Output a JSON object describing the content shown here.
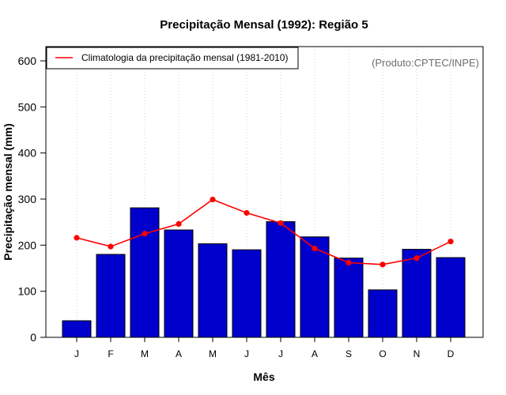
{
  "chart_data": {
    "type": "bar",
    "title": "Precipitação Mensal (1992): Região 5",
    "xlabel": "Mês",
    "ylabel": "Precipitação mensal (mm)",
    "ylim": [
      0,
      630
    ],
    "yticks": [
      0,
      100,
      200,
      300,
      400,
      500,
      600
    ],
    "grid": true,
    "categories": [
      "J",
      "F",
      "M",
      "A",
      "M",
      "J",
      "J",
      "A",
      "S",
      "O",
      "N",
      "D"
    ],
    "series": [
      {
        "name": "Precipitação mensal 1992",
        "type": "bar",
        "color": "#0000CD",
        "values": [
          36,
          180,
          281,
          233,
          203,
          190,
          251,
          218,
          172,
          103,
          191,
          173
        ]
      },
      {
        "name": "Climatologia da precipitação mensal (1981-2010)",
        "type": "line",
        "color": "#FF0000",
        "values": [
          216,
          197,
          225,
          246,
          299,
          270,
          248,
          193,
          162,
          158,
          172,
          208
        ]
      }
    ],
    "legend": {
      "position": "top-left",
      "label": "Climatologia da precipitação mensal (1981-2010)"
    },
    "annotation": "(Produto:CPTEC/INPE)"
  }
}
